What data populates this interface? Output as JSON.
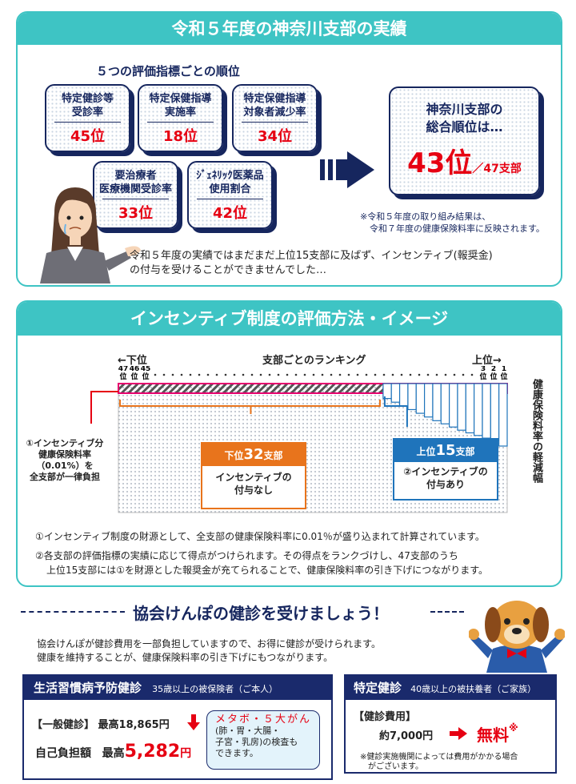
{
  "section1": {
    "title": "令和５年度の神奈川支部の実績",
    "subtitle": "５つの評価指標ごとの順位",
    "metrics": [
      {
        "label1": "特定健診等",
        "label2": "受診率",
        "rank": "45位"
      },
      {
        "label1": "特定保健指導",
        "label2": "実施率",
        "rank": "18位"
      },
      {
        "label1": "特定保健指導",
        "label2": "対象者減少率",
        "rank": "34位"
      },
      {
        "label1": "要治療者",
        "label2": "医療機関受診率",
        "rank": "33位"
      },
      {
        "label1": "ｼﾞｪﾈﾘｯｸ医薬品",
        "label2": "使用割合",
        "rank": "42位"
      }
    ],
    "total_line1": "神奈川支部の",
    "total_line2": "総合順位は…",
    "total_rank": "43位",
    "total_of": "／47支部",
    "note1": "※令和５年度の取り組み結果は、",
    "note2": "令和７年度の健康保険料率に反映されます。",
    "speech1": "令和５年度の実績ではまだまだ上位15支部に及ばず、インセンティブ(報奨金)",
    "speech2": "の付与を受けることができませんでした…"
  },
  "section2": {
    "title": "インセンティブ制度の評価方法・イメージ",
    "left_dir": "←下位",
    "right_dir": "上位→",
    "center_label": "支部ごとのランキング",
    "left_ranks": [
      "47",
      "46",
      "45"
    ],
    "rank_suffix": "位",
    "right_ranks": [
      "3",
      "2",
      "1"
    ],
    "side_label": "健康保険料率の軽減幅",
    "burden1": "①インセンティブ分",
    "burden2": "健康保険料率",
    "burden3": "（0.01%）を",
    "burden4": "全支部が一律負担",
    "lower_head_pre": "下位",
    "lower_head_num": "32",
    "lower_head_post": "支部",
    "lower_body1": "インセンティブの",
    "lower_body2": "付与なし",
    "upper_head_pre": "上位",
    "upper_head_num": "15",
    "upper_head_post": "支部",
    "upper_body1": "②インセンティブの",
    "upper_body2": "付与あり",
    "note1": "①インセンティブ制度の財源として、全支部の健康保険料率に0.01％が盛り込まれて計算されています。",
    "note2a": "②各支部の評価指標の実績に応じて得点がつけられます。その得点をランクづけし、47支部のうち",
    "note2b": "上位15支部には①を財源とした報奨金が充てられることで、健康保険料率の引き下げにつながります。"
  },
  "section3": {
    "title": "協会けんぽの健診を受けましょう！",
    "body1": "協会けんぽが健診費用を一部負担していますので、お得に健診が受けられます。",
    "body2": "健康を維持することが、健康保険料率の引き下げにもつながります。",
    "left_box": {
      "head": "生活習慣病予防健診",
      "head_sub": "35歳以上の被保険者（ご本人）",
      "general": "【一般健診】 最高18,865円",
      "self_label": "自己負担額",
      "self_pre": "最高",
      "self_value": "5,282",
      "self_unit": "円",
      "metabo_title": "メタボ・５大がん",
      "metabo_1": "(肺・胃・大腸・",
      "metabo_2": "子宮・乳房)の検査も",
      "metabo_3": "できます。"
    },
    "right_box": {
      "head": "特定健診",
      "head_sub": "40歳以上の被扶養者（ご家族）",
      "cost_label": "【健診費用】",
      "cost": "約7,000円",
      "free": "無料",
      "free_mark": "※",
      "note1": "※健診実施機関によっては費用がかかる場合",
      "note2": "がございます。"
    }
  },
  "chart_data": {
    "type": "bar",
    "title": "支部ごとのランキング",
    "categories_count": 47,
    "lower_group_count": 32,
    "upper_group_count": 15,
    "upper_reductions": [
      0.1,
      0.17,
      0.24,
      0.31,
      0.38,
      0.45,
      0.52,
      0.58,
      0.64,
      0.7,
      0.75,
      0.8,
      0.85,
      0.9,
      1.0
    ],
    "colors": {
      "lower": "#e8741c",
      "upper": "#1f74bb",
      "burden": "#e6006e"
    }
  }
}
